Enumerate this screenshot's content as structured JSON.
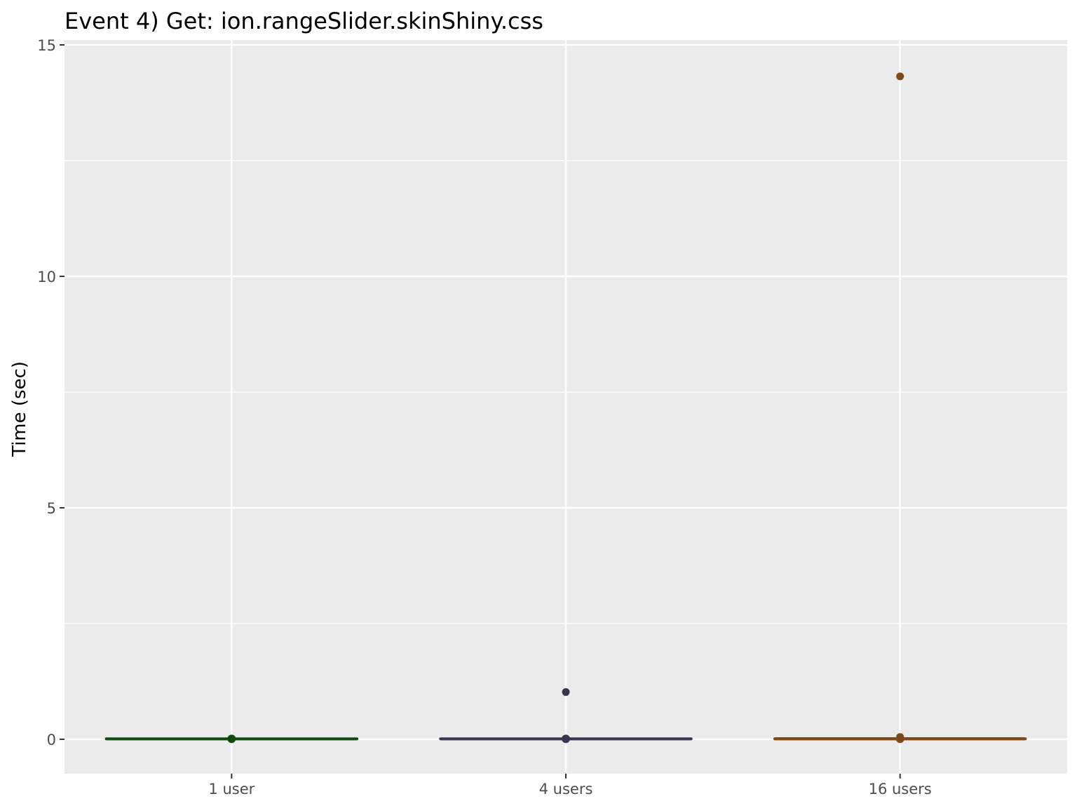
{
  "chart_data": {
    "type": "box",
    "title": "Event 4) Get: ion.rangeSlider.skinShiny.css",
    "xlabel": "",
    "ylabel": "Time (sec)",
    "ylim": [
      -0.75,
      15.05
    ],
    "y_ticks": [
      0,
      5,
      10,
      15
    ],
    "y_tick_labels": [
      "0",
      "5",
      "10",
      "15"
    ],
    "categories": [
      "1 user",
      "4 users",
      "16 users"
    ],
    "grid": true,
    "legend": "none",
    "series": [
      {
        "category": "1 user",
        "color": "#114a11",
        "box": {
          "min": 0.0,
          "q1": 0.0,
          "median": 0.01,
          "q3": 0.01,
          "max": 0.01
        },
        "outliers": []
      },
      {
        "category": "4 users",
        "color": "#3b3450",
        "box": {
          "min": 0.0,
          "q1": 0.0,
          "median": 0.01,
          "q3": 0.01,
          "max": 0.02
        },
        "outliers": [
          1.02
        ]
      },
      {
        "category": "16 users",
        "color": "#7a4a1e",
        "box": {
          "min": 0.0,
          "q1": 0.0,
          "median": 0.01,
          "q3": 0.02,
          "max": 0.03
        },
        "outliers": [
          0.05,
          14.32
        ]
      }
    ],
    "colors": {
      "panel": "#ebebeb",
      "grid": "#ffffff",
      "tick": "#333333"
    }
  }
}
